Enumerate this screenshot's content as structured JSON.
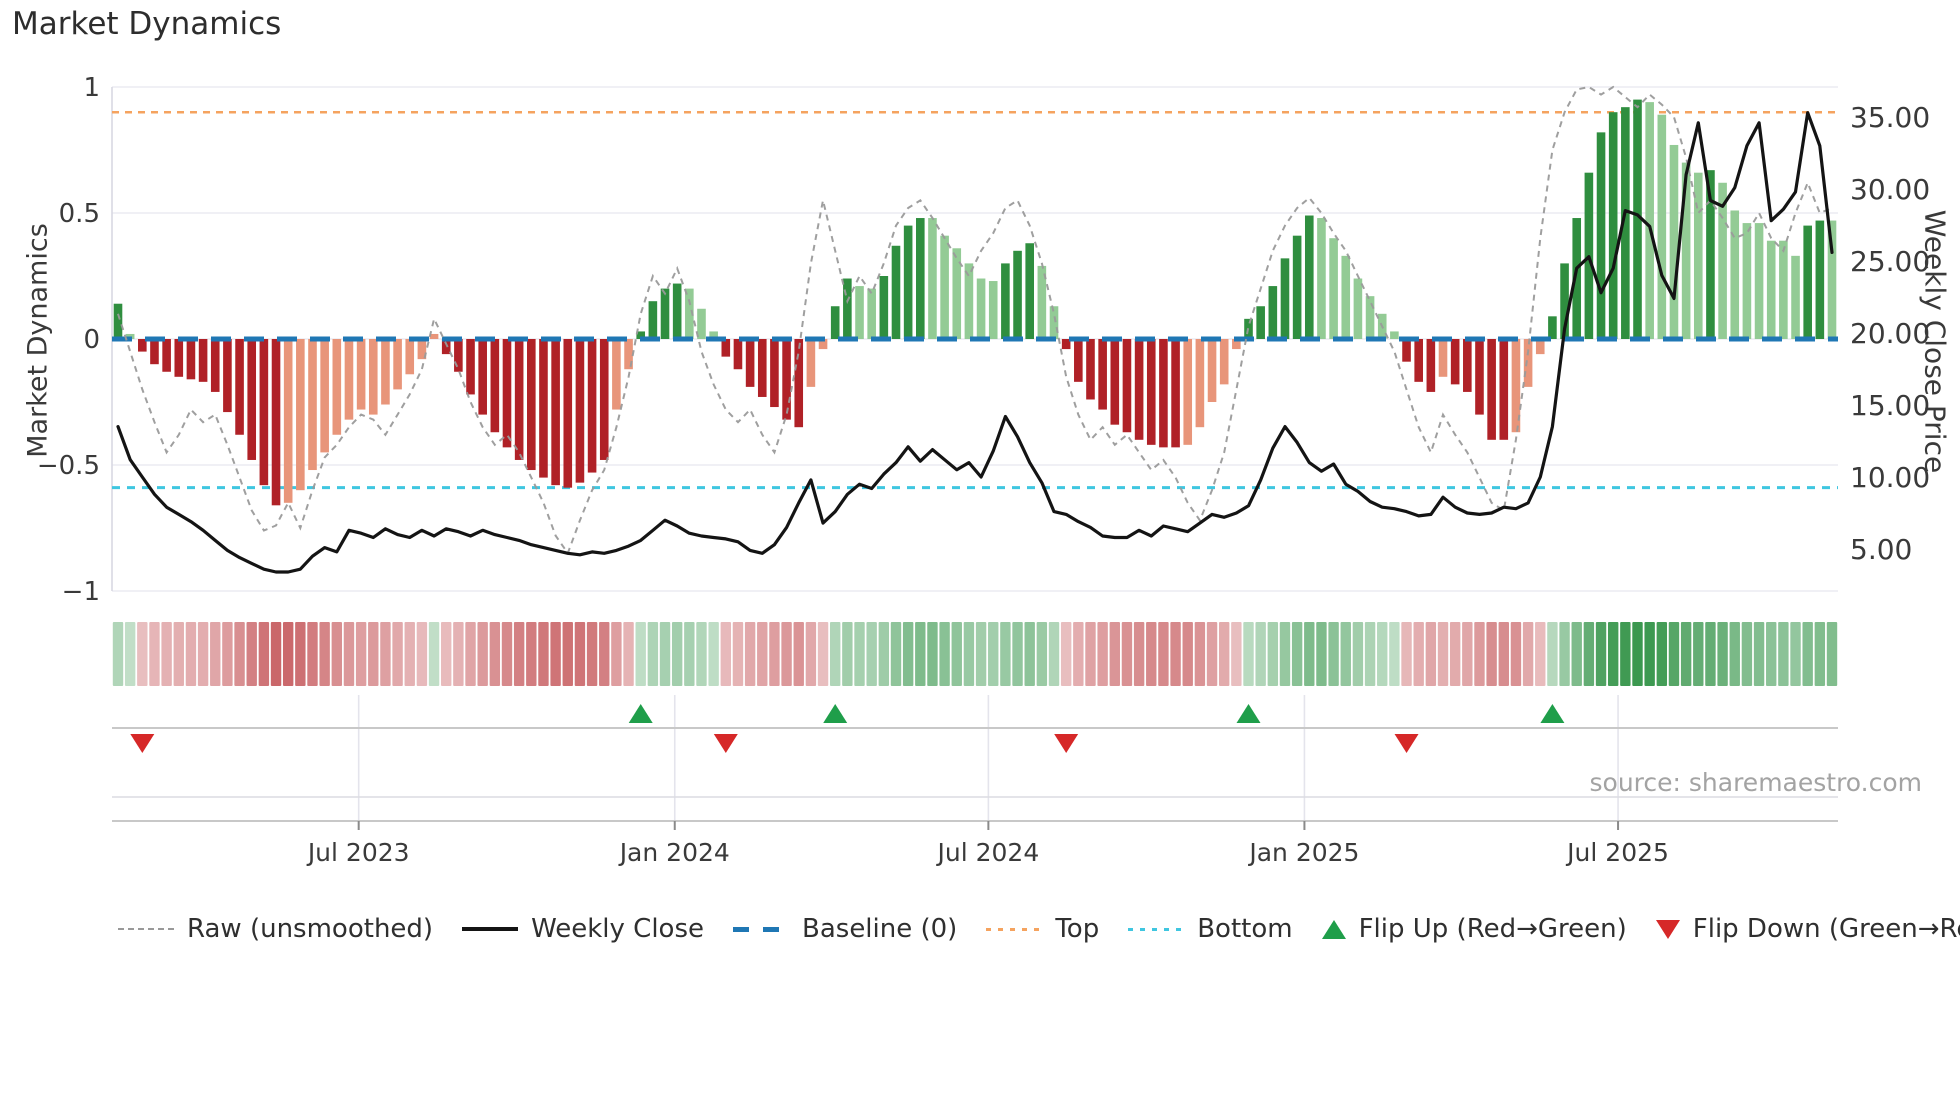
{
  "title": "Market Dynamics",
  "source_text": "source: sharemaestro.com",
  "axes": {
    "left_label": "Market Dynamics",
    "right_label": "Weekly Close Price",
    "left_ticks": [
      {
        "label": "1",
        "value": 1
      },
      {
        "label": "0.5",
        "value": 0.5
      },
      {
        "label": "0",
        "value": 0
      },
      {
        "label": "−0.5",
        "value": -0.5
      },
      {
        "label": "−1",
        "value": -1
      }
    ],
    "right_ticks": [
      {
        "label": "35.00",
        "value": 35
      },
      {
        "label": "30.00",
        "value": 30
      },
      {
        "label": "25.00",
        "value": 25
      },
      {
        "label": "20.00",
        "value": 20
      },
      {
        "label": "15.00",
        "value": 15
      },
      {
        "label": "10.00",
        "value": 10
      },
      {
        "label": "5.00",
        "value": 5
      }
    ],
    "x_ticks": [
      {
        "label": "Jul 2023",
        "week": 19.8
      },
      {
        "label": "Jan 2024",
        "week": 45.8
      },
      {
        "label": "Jul 2024",
        "week": 71.6
      },
      {
        "label": "Jan 2025",
        "week": 97.6
      },
      {
        "label": "Jul 2025",
        "week": 123.4
      }
    ]
  },
  "legend": [
    {
      "id": "raw",
      "label": "Raw (unsmoothed)",
      "swatch": "dash-gray"
    },
    {
      "id": "weekly-close",
      "label": "Weekly Close",
      "swatch": "solid-black"
    },
    {
      "id": "baseline",
      "label": "Baseline (0)",
      "swatch": "dash-blue"
    },
    {
      "id": "top",
      "label": "Top",
      "swatch": "dot-orange"
    },
    {
      "id": "bottom",
      "label": "Bottom",
      "swatch": "dot-cyan"
    },
    {
      "id": "flip-up",
      "label": "Flip Up (Red→Green)",
      "swatch": "tri-up"
    },
    {
      "id": "flip-down",
      "label": "Flip Down (Green→Red)",
      "swatch": "tri-down"
    }
  ],
  "colors": {
    "bar_dark_green": "#2f8e3f",
    "bar_light_green": "#93cb95",
    "bar_dark_red": "#b02127",
    "bar_light_red": "#e8957a",
    "baseline_line": "#1f77b4",
    "top_line": "#f5a35f",
    "bottom_line": "#3fc6e0",
    "raw_line": "#9a9a9a",
    "price_line": "#141414",
    "flip_up_marker": "#1f9e4a",
    "flip_down_marker": "#d62828",
    "grid": "#ebebf2",
    "spine": "#c8c8c8",
    "tick_text": "#3a3a3a",
    "heat_green_rgb": "40,142,62",
    "heat_red_rgb": "182,44,48"
  },
  "chart_data": {
    "type": "composite",
    "subtype": "oscillator-bars + raw-line + price-line + heatmap + flip-markers",
    "n_weeks": 142,
    "x_start_approx": "Feb 2023",
    "x_end_approx": "Nov 2025",
    "left_ylim": [
      -1,
      1
    ],
    "right_ylim": [
      2.7,
      37.3
    ],
    "baseline": 0,
    "top_threshold": 0.9,
    "bottom_threshold": -0.59,
    "oscillator": {
      "name": "Market Dynamics (smoothed)",
      "values": [
        0.14,
        0.02,
        -0.05,
        -0.1,
        -0.13,
        -0.15,
        -0.16,
        -0.17,
        -0.21,
        -0.29,
        -0.38,
        -0.48,
        -0.58,
        -0.66,
        -0.65,
        -0.6,
        -0.52,
        -0.45,
        -0.38,
        -0.32,
        -0.28,
        -0.3,
        -0.26,
        -0.2,
        -0.14,
        -0.08,
        0.02,
        -0.06,
        -0.13,
        -0.22,
        -0.3,
        -0.37,
        -0.43,
        -0.48,
        -0.52,
        -0.55,
        -0.58,
        -0.59,
        -0.57,
        -0.53,
        -0.48,
        -0.28,
        -0.12,
        0.03,
        0.15,
        0.2,
        0.22,
        0.2,
        0.12,
        0.03,
        -0.07,
        -0.12,
        -0.19,
        -0.23,
        -0.27,
        -0.32,
        -0.35,
        -0.19,
        -0.04,
        0.13,
        0.24,
        0.21,
        0.2,
        0.25,
        0.37,
        0.45,
        0.48,
        0.48,
        0.41,
        0.36,
        0.3,
        0.24,
        0.23,
        0.3,
        0.35,
        0.38,
        0.29,
        0.13,
        -0.04,
        -0.17,
        -0.24,
        -0.28,
        -0.34,
        -0.37,
        -0.4,
        -0.42,
        -0.43,
        -0.43,
        -0.42,
        -0.35,
        -0.25,
        -0.18,
        -0.04,
        0.08,
        0.13,
        0.21,
        0.32,
        0.41,
        0.49,
        0.48,
        0.4,
        0.33,
        0.24,
        0.17,
        0.1,
        0.03,
        -0.09,
        -0.17,
        -0.21,
        -0.15,
        -0.18,
        -0.21,
        -0.3,
        -0.4,
        -0.4,
        -0.37,
        -0.19,
        -0.06,
        0.09,
        0.3,
        0.48,
        0.66,
        0.82,
        0.9,
        0.92,
        0.95,
        0.94,
        0.89,
        0.77,
        0.7,
        0.66,
        0.67,
        0.62,
        0.51,
        0.46,
        0.46,
        0.39,
        0.39,
        0.33,
        0.45,
        0.47,
        0.47
      ],
      "shade": [
        "dg",
        "lg",
        "dr",
        "dr",
        "dr",
        "dr",
        "dr",
        "dr",
        "dr",
        "dr",
        "dr",
        "dr",
        "dr",
        "dr",
        "lr",
        "lr",
        "lr",
        "lr",
        "lr",
        "lr",
        "lr",
        "lr",
        "lr",
        "lr",
        "lr",
        "lr",
        "lr",
        "dr",
        "dr",
        "dr",
        "dr",
        "dr",
        "dr",
        "dr",
        "dr",
        "dr",
        "dr",
        "dr",
        "dr",
        "dr",
        "dr",
        "lr",
        "lr",
        "dg",
        "dg",
        "dg",
        "dg",
        "lg",
        "lg",
        "lg",
        "dr",
        "dr",
        "dr",
        "dr",
        "dr",
        "dr",
        "dr",
        "lr",
        "lr",
        "dg",
        "dg",
        "lg",
        "lg",
        "dg",
        "dg",
        "dg",
        "dg",
        "lg",
        "lg",
        "lg",
        "lg",
        "lg",
        "lg",
        "dg",
        "dg",
        "dg",
        "lg",
        "lg",
        "dr",
        "dr",
        "dr",
        "dr",
        "dr",
        "dr",
        "dr",
        "dr",
        "dr",
        "dr",
        "lr",
        "lr",
        "lr",
        "lr",
        "lr",
        "dg",
        "dg",
        "dg",
        "dg",
        "dg",
        "dg",
        "lg",
        "lg",
        "lg",
        "lg",
        "lg",
        "lg",
        "lg",
        "dr",
        "dr",
        "dr",
        "lr",
        "dr",
        "dr",
        "dr",
        "dr",
        "dr",
        "lr",
        "lr",
        "lr",
        "dg",
        "dg",
        "dg",
        "dg",
        "dg",
        "dg",
        "dg",
        "dg",
        "lg",
        "lg",
        "lg",
        "lg",
        "lg",
        "dg",
        "lg",
        "lg",
        "lg",
        "lg",
        "lg",
        "lg",
        "lg",
        "dg",
        "dg",
        "lg"
      ]
    },
    "raw": {
      "name": "Raw (unsmoothed)",
      "values": [
        0.1,
        -0.05,
        -0.2,
        -0.33,
        -0.45,
        -0.38,
        -0.28,
        -0.33,
        -0.3,
        -0.42,
        -0.55,
        -0.68,
        -0.76,
        -0.74,
        -0.65,
        -0.75,
        -0.6,
        -0.47,
        -0.42,
        -0.35,
        -0.3,
        -0.32,
        -0.38,
        -0.3,
        -0.22,
        -0.12,
        0.08,
        -0.02,
        -0.12,
        -0.25,
        -0.35,
        -0.42,
        -0.38,
        -0.45,
        -0.55,
        -0.65,
        -0.78,
        -0.85,
        -0.72,
        -0.6,
        -0.52,
        -0.35,
        -0.15,
        0.1,
        0.25,
        0.18,
        0.28,
        0.15,
        -0.05,
        -0.18,
        -0.28,
        -0.33,
        -0.28,
        -0.38,
        -0.45,
        -0.3,
        -0.05,
        0.3,
        0.55,
        0.35,
        0.15,
        0.25,
        0.18,
        0.3,
        0.45,
        0.52,
        0.55,
        0.48,
        0.4,
        0.32,
        0.25,
        0.35,
        0.42,
        0.52,
        0.55,
        0.45,
        0.3,
        0.1,
        -0.15,
        -0.3,
        -0.4,
        -0.35,
        -0.42,
        -0.38,
        -0.45,
        -0.52,
        -0.48,
        -0.55,
        -0.65,
        -0.72,
        -0.6,
        -0.45,
        -0.2,
        0.05,
        0.2,
        0.35,
        0.45,
        0.52,
        0.56,
        0.5,
        0.42,
        0.35,
        0.25,
        0.15,
        0.05,
        -0.05,
        -0.2,
        -0.35,
        -0.45,
        -0.3,
        -0.38,
        -0.45,
        -0.55,
        -0.65,
        -0.68,
        -0.4,
        -0.05,
        0.4,
        0.75,
        0.9,
        0.99,
        1.0,
        0.97,
        1.0,
        0.96,
        0.92,
        0.97,
        0.93,
        0.88,
        0.72,
        0.5,
        0.55,
        0.48,
        0.4,
        0.42,
        0.5,
        0.4,
        0.35,
        0.5,
        0.62,
        0.5,
        0.52
      ]
    },
    "price": {
      "name": "Weekly Close",
      "values": [
        13.5,
        11.2,
        10.0,
        8.8,
        7.9,
        7.4,
        6.9,
        6.3,
        5.6,
        4.9,
        4.4,
        4.0,
        3.6,
        3.4,
        3.4,
        3.6,
        4.5,
        5.1,
        4.8,
        6.3,
        6.1,
        5.8,
        6.4,
        6.0,
        5.8,
        6.3,
        5.9,
        6.4,
        6.2,
        5.9,
        6.3,
        6.0,
        5.8,
        5.6,
        5.3,
        5.1,
        4.9,
        4.7,
        4.6,
        4.8,
        4.7,
        4.9,
        5.2,
        5.6,
        6.3,
        7.0,
        6.6,
        6.1,
        5.9,
        5.8,
        5.7,
        5.5,
        4.9,
        4.7,
        5.3,
        6.5,
        8.2,
        9.8,
        6.8,
        7.6,
        8.8,
        9.5,
        9.2,
        10.2,
        11.0,
        12.1,
        11.1,
        11.9,
        11.2,
        10.5,
        11.0,
        10.0,
        11.8,
        14.2,
        12.8,
        11.0,
        9.6,
        7.6,
        7.4,
        6.9,
        6.5,
        5.9,
        5.8,
        5.8,
        6.3,
        5.9,
        6.6,
        6.4,
        6.2,
        6.8,
        7.4,
        7.2,
        7.5,
        8.0,
        9.8,
        12.0,
        13.5,
        12.4,
        11.0,
        10.4,
        10.9,
        9.5,
        9.0,
        8.3,
        7.9,
        7.8,
        7.6,
        7.3,
        7.4,
        8.6,
        7.9,
        7.5,
        7.4,
        7.5,
        7.9,
        7.8,
        8.2,
        10.0,
        13.5,
        20.3,
        24.5,
        25.3,
        22.8,
        24.5,
        28.5,
        28.2,
        27.4,
        24.0,
        22.4,
        31.0,
        34.6,
        29.2,
        28.8,
        30.1,
        33.0,
        34.6,
        27.8,
        28.6,
        29.8,
        35.3,
        33.0,
        25.6
      ]
    },
    "flip_up_weeks": [
      43,
      59,
      93,
      118
    ],
    "flip_down_weeks": [
      2,
      50,
      78,
      106
    ],
    "heatmap": {
      "description": "weekly strip tinted by oscillator sign and magnitude",
      "rows": 1
    },
    "grid": "on",
    "legend_position": "bottom"
  }
}
